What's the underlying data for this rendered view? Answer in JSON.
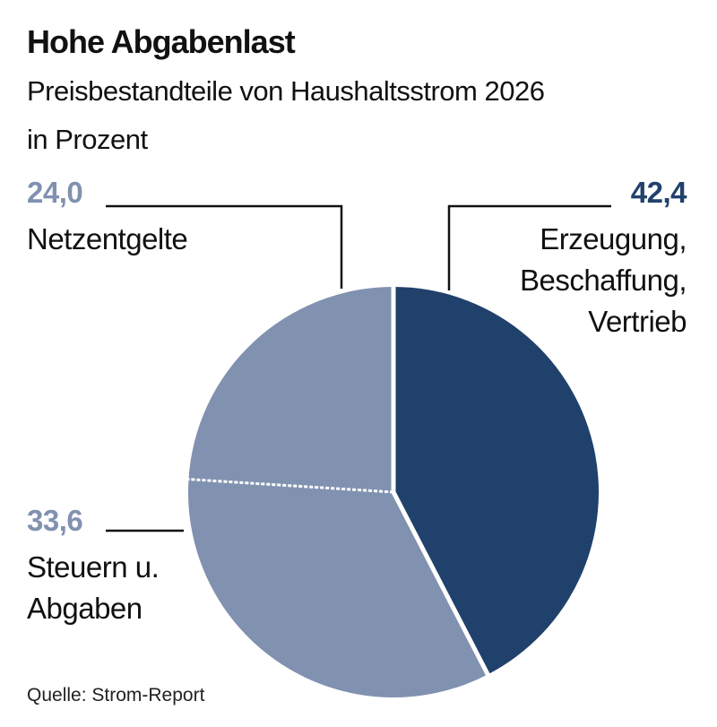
{
  "chart_data": {
    "type": "pie",
    "title": "Hohe Abgabenlast",
    "subtitle_line1": "Preisbestandteile von Haushaltsstrom 2026",
    "subtitle_line2": "in Prozent",
    "slices": [
      {
        "label_lines": [
          "Erzeugung,",
          "Beschaffung,",
          "Vertrieb"
        ],
        "value": 42.4,
        "value_label": "42,4",
        "color": "#20416b"
      },
      {
        "label_lines": [
          "Steuern u.",
          "Abgaben"
        ],
        "value": 33.6,
        "value_label": "33,6",
        "color": "#8191b0"
      },
      {
        "label_lines": [
          "Netzentgelte"
        ],
        "value": 24.0,
        "value_label": "24,0",
        "color": "#8191b0"
      }
    ],
    "source": "Quelle: Strom-Report"
  }
}
